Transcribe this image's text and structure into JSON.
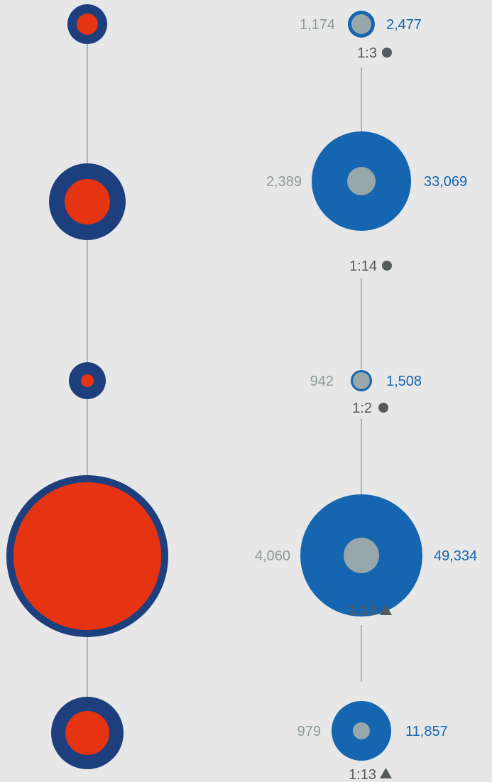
{
  "colors": {
    "background": "#e6e7e6",
    "connector": "#9aa6a8",
    "left_outer": "#1e3f7e",
    "left_inner": "#e63312",
    "right_outer": "#1565b0",
    "right_inner": "#98a8aa",
    "left_value_text": "#8f9a9a",
    "right_value_text": "#1565b0",
    "ratio_text": "#555a5c",
    "marker": "#555a5c"
  },
  "rows": [
    {
      "left_value": "1,174",
      "right_value": "2,477",
      "ratio": "1:3",
      "marker": "circle"
    },
    {
      "left_value": "2,389",
      "right_value": "33,069",
      "ratio": "1:14",
      "marker": "circle"
    },
    {
      "left_value": "942",
      "right_value": "1,508",
      "ratio": "1:2",
      "marker": "circle"
    },
    {
      "left_value": "4,060",
      "right_value": "49,334",
      "ratio": "1:13",
      "marker": "triangle"
    },
    {
      "left_value": "979",
      "right_value": "11,857",
      "ratio": "1:13",
      "marker": "triangle"
    }
  ]
}
